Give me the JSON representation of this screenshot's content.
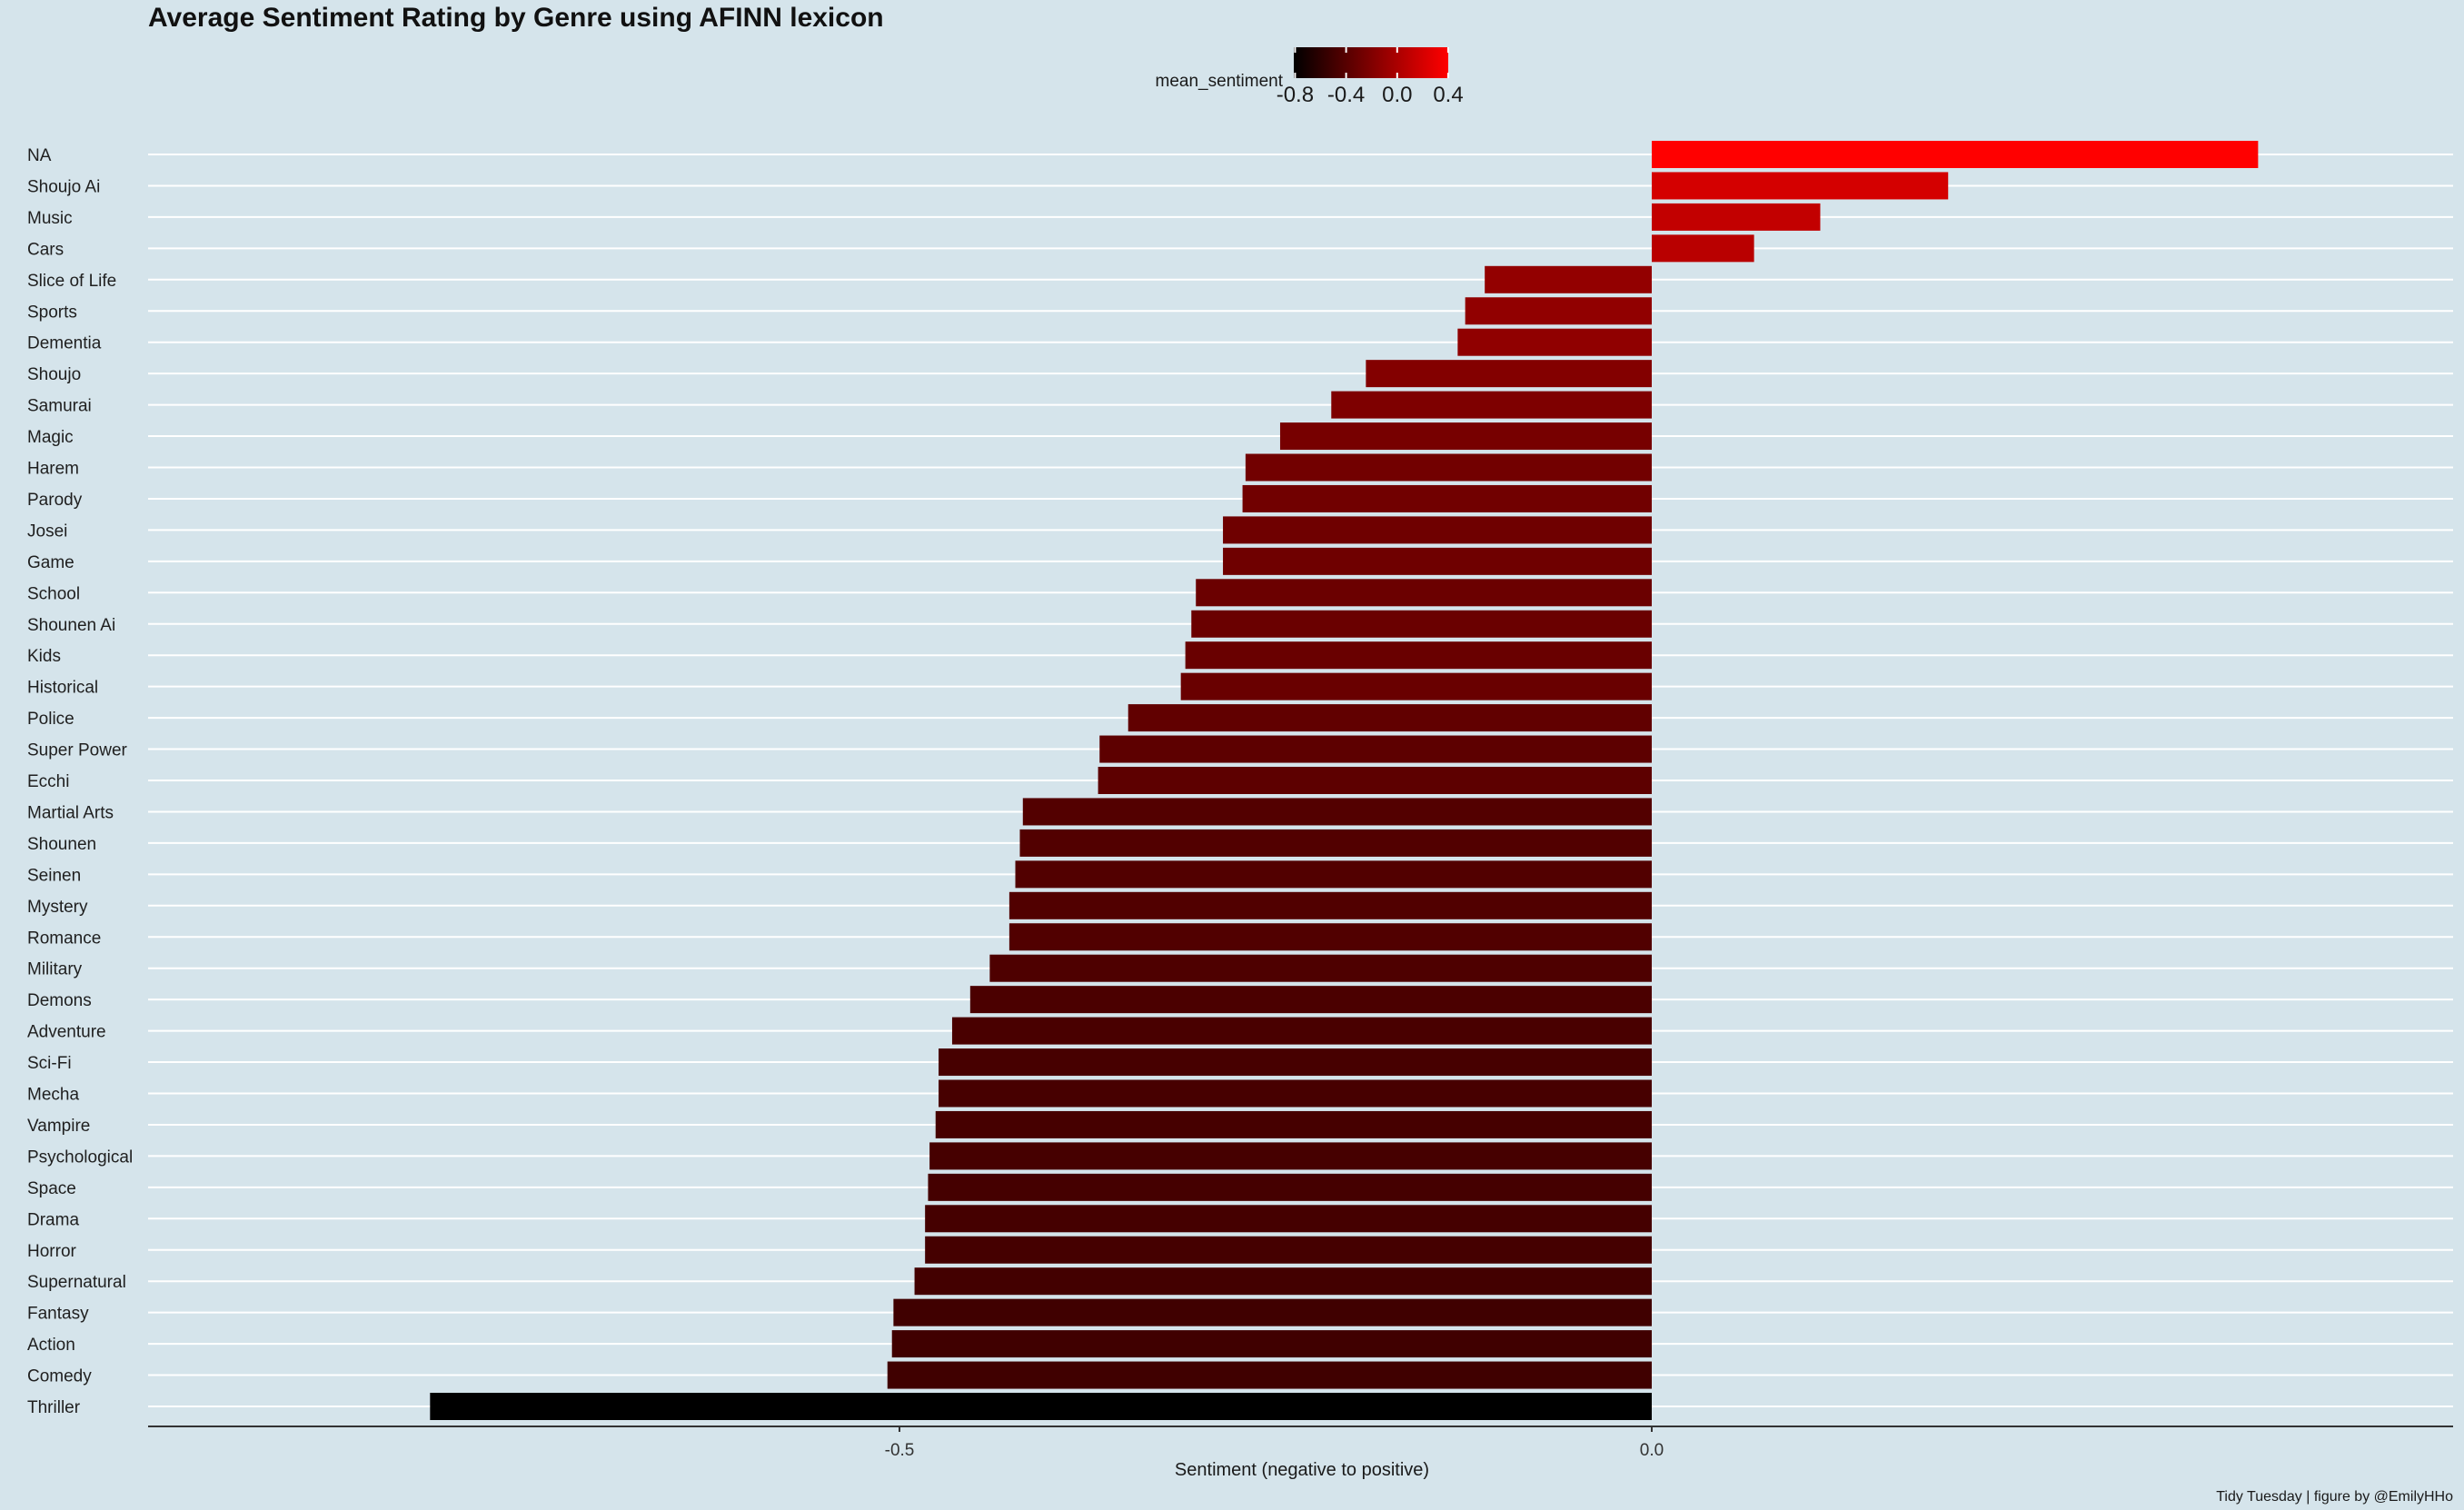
{
  "chart_data": {
    "type": "bar",
    "orientation": "horizontal",
    "title": "Average Sentiment Rating by Genre using AFINN lexicon",
    "xlabel": "Sentiment (negative to positive)",
    "caption": "Tidy Tuesday | figure by @EmilyHHo",
    "xlim": [
      -0.88,
      0.45
    ],
    "x_ticks": [
      {
        "value": -0.5,
        "label": "-0.5"
      },
      {
        "value": 0.0,
        "label": "0.0"
      }
    ],
    "grid": "horizontal-major",
    "legend": {
      "title": "mean_sentiment",
      "placement": "top",
      "type": "gradient",
      "low": -0.81,
      "high": 0.4,
      "low_color": "#000000",
      "high_color": "#ff0000",
      "ticks": [
        {
          "value": -0.8,
          "label": "-0.8"
        },
        {
          "value": -0.4,
          "label": "-0.4"
        },
        {
          "value": 0.0,
          "label": "0.0"
        },
        {
          "value": 0.4,
          "label": "0.4"
        }
      ]
    },
    "categories": [
      "NA",
      "Shoujo Ai",
      "Music",
      "Cars",
      "Slice of Life",
      "Sports",
      "Dementia",
      "Shoujo",
      "Samurai",
      "Magic",
      "Harem",
      "Parody",
      "Josei",
      "Game",
      "School",
      "Shounen Ai",
      "Kids",
      "Historical",
      "Police",
      "Super Power",
      "Ecchi",
      "Martial Arts",
      "Shounen",
      "Seinen",
      "Mystery",
      "Romance",
      "Military",
      "Demons",
      "Adventure",
      "Sci-Fi",
      "Mecha",
      "Vampire",
      "Psychological",
      "Space",
      "Drama",
      "Horror",
      "Supernatural",
      "Fantasy",
      "Action",
      "Comedy",
      "Thriller"
    ],
    "values": [
      0.403,
      0.197,
      0.112,
      0.068,
      -0.111,
      -0.124,
      -0.129,
      -0.19,
      -0.213,
      -0.247,
      -0.27,
      -0.272,
      -0.285,
      -0.285,
      -0.303,
      -0.306,
      -0.31,
      -0.313,
      -0.348,
      -0.367,
      -0.368,
      -0.418,
      -0.42,
      -0.423,
      -0.427,
      -0.427,
      -0.44,
      -0.453,
      -0.465,
      -0.474,
      -0.474,
      -0.476,
      -0.48,
      -0.481,
      -0.483,
      -0.483,
      -0.49,
      -0.504,
      -0.505,
      -0.508,
      -0.812
    ]
  }
}
